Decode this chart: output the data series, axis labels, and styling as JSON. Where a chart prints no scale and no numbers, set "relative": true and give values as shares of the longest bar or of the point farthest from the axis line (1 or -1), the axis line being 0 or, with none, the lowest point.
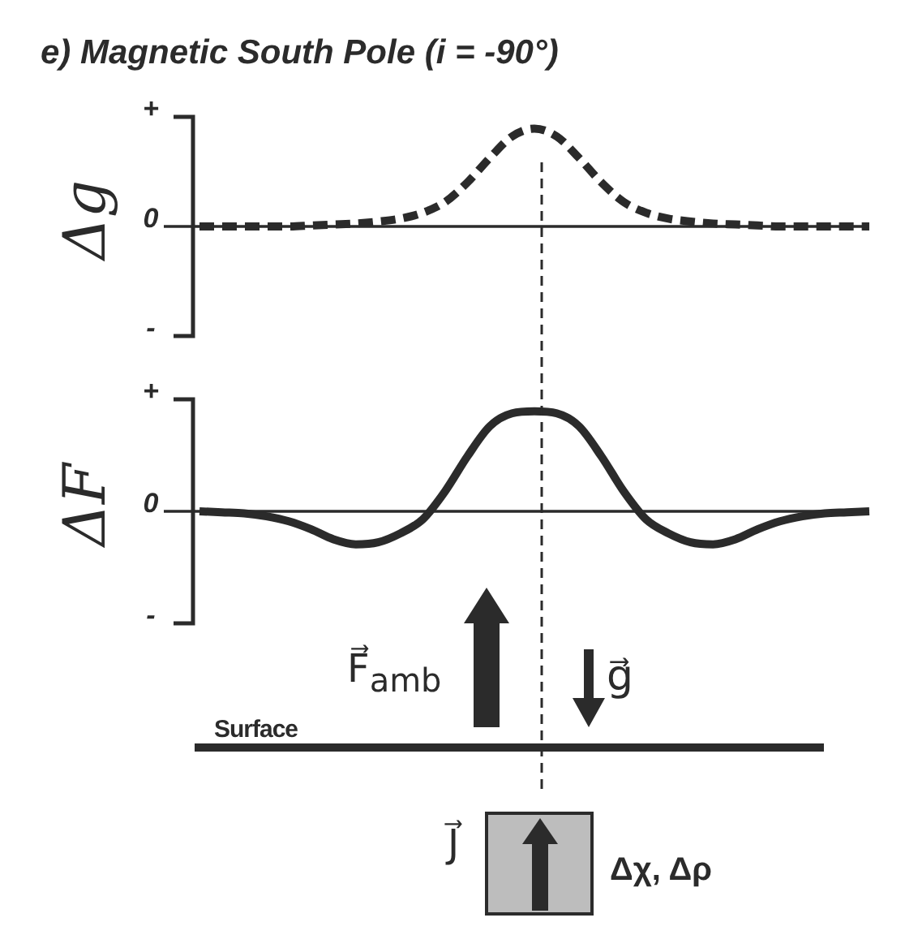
{
  "chart_data": [
    {
      "type": "line",
      "title": "e) Magnetic South Pole (i = -90°)",
      "ylabel": "Δg",
      "relative": true,
      "annotations": [
        "+",
        "0",
        "-"
      ],
      "categories": [
        null,
        null,
        null,
        null,
        null,
        null,
        null,
        null,
        null,
        null,
        null,
        null,
        null,
        null,
        null,
        null,
        null,
        null,
        null,
        null,
        null,
        null,
        null,
        null,
        null,
        null,
        null,
        null,
        null,
        null,
        null
      ],
      "series": [
        {
          "color": "#2b2b2b",
          "line_style": "dashed",
          "values": [
            0,
            0,
            0,
            0,
            0,
            0.01,
            0.02,
            0.03,
            0.05,
            0.08,
            0.14,
            0.25,
            0.45,
            0.7,
            0.92,
            1,
            0.92,
            0.7,
            0.45,
            0.25,
            0.14,
            0.08,
            0.05,
            0.03,
            0.02,
            0.01,
            0,
            0,
            0,
            0,
            0
          ]
        }
      ]
    },
    {
      "type": "line",
      "ylabel": "ΔF",
      "relative": true,
      "annotations": [
        "+",
        "0",
        "-",
        "F⃗$_{amb}$",
        "g⃗",
        "Surface",
        "J⃗",
        "Δχ, Δρ"
      ],
      "categories": [
        null,
        null,
        null,
        null,
        null,
        null,
        null,
        null,
        null,
        null,
        null,
        null,
        null,
        null,
        null,
        null,
        null,
        null,
        null,
        null,
        null,
        null,
        null,
        null,
        null,
        null,
        null,
        null,
        null,
        null,
        null
      ],
      "series": [
        {
          "color": "#2b2b2b",
          "line_style": "solid",
          "values": [
            0,
            -0.01,
            -0.02,
            -0.05,
            -0.1,
            -0.18,
            -0.28,
            -0.33,
            -0.31,
            -0.22,
            -0.08,
            0.2,
            0.55,
            0.85,
            0.98,
            1,
            0.98,
            0.85,
            0.55,
            0.2,
            -0.08,
            -0.22,
            -0.31,
            -0.33,
            -0.28,
            -0.18,
            -0.1,
            -0.05,
            -0.02,
            -0.01,
            0
          ]
        }
      ]
    }
  ]
}
